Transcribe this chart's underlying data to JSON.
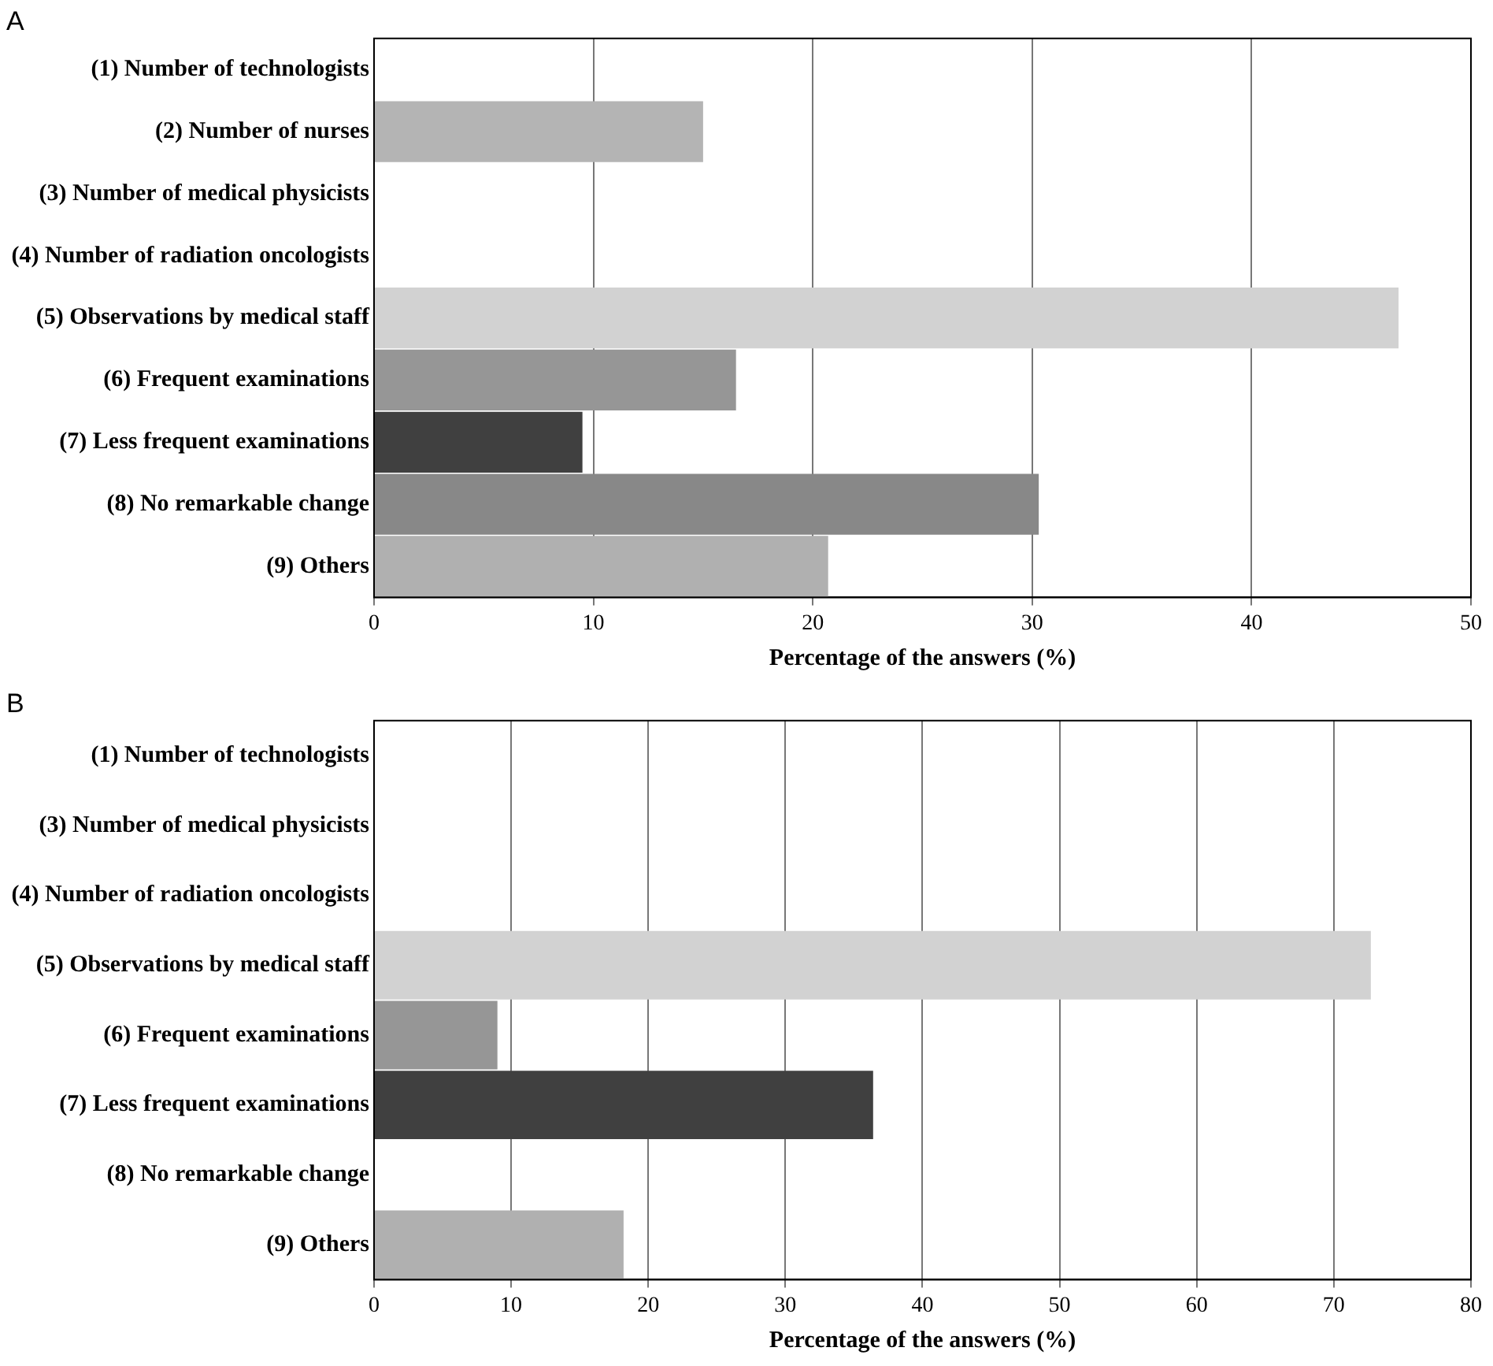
{
  "chart_data": [
    {
      "type": "bar",
      "orientation": "horizontal",
      "title": "A",
      "xlabel": "Percentage of the answers (%)",
      "categories": [
        "(1) Number of technologists",
        "(2) Number of nurses",
        "(3) Number of medical physicists",
        "(4) Number of radiation oncologists",
        "(5) Observations by medical staff",
        "(6) Frequent examinations",
        "(7) Less frequent examinations",
        "(8) No remarkable change",
        "(9) Others"
      ],
      "values": [
        0,
        15.0,
        0,
        0,
        46.7,
        16.5,
        9.5,
        30.3,
        20.7
      ],
      "colors": [
        "#b4b4b4",
        "#b4b4b4",
        "#b4b4b4",
        "#b4b4b4",
        "#d2d2d2",
        "#969696",
        "#404040",
        "#888888",
        "#b0b0b0"
      ],
      "xlim": [
        0,
        50
      ],
      "xticks": [
        0,
        10,
        20,
        30,
        40,
        50
      ],
      "grid": "x",
      "legend": false
    },
    {
      "type": "bar",
      "orientation": "horizontal",
      "title": "B",
      "xlabel": "Percentage of the answers (%)",
      "categories": [
        "(1) Number of technologists",
        "(3) Number of medical physicists",
        "(4) Number of radiation oncologists",
        "(5) Observations by medical staff",
        "(6) Frequent examinations",
        "(7) Less frequent examinations",
        "(8) No remarkable change",
        "(9) Others"
      ],
      "values": [
        0,
        0,
        0,
        72.7,
        9.0,
        36.4,
        0,
        18.2
      ],
      "colors": [
        "#b4b4b4",
        "#b4b4b4",
        "#b4b4b4",
        "#d2d2d2",
        "#969696",
        "#404040",
        "#888888",
        "#b0b0b0"
      ],
      "xlim": [
        0,
        80
      ],
      "xticks": [
        0,
        10,
        20,
        30,
        40,
        50,
        60,
        70,
        80
      ],
      "grid": "x",
      "legend": false
    }
  ]
}
